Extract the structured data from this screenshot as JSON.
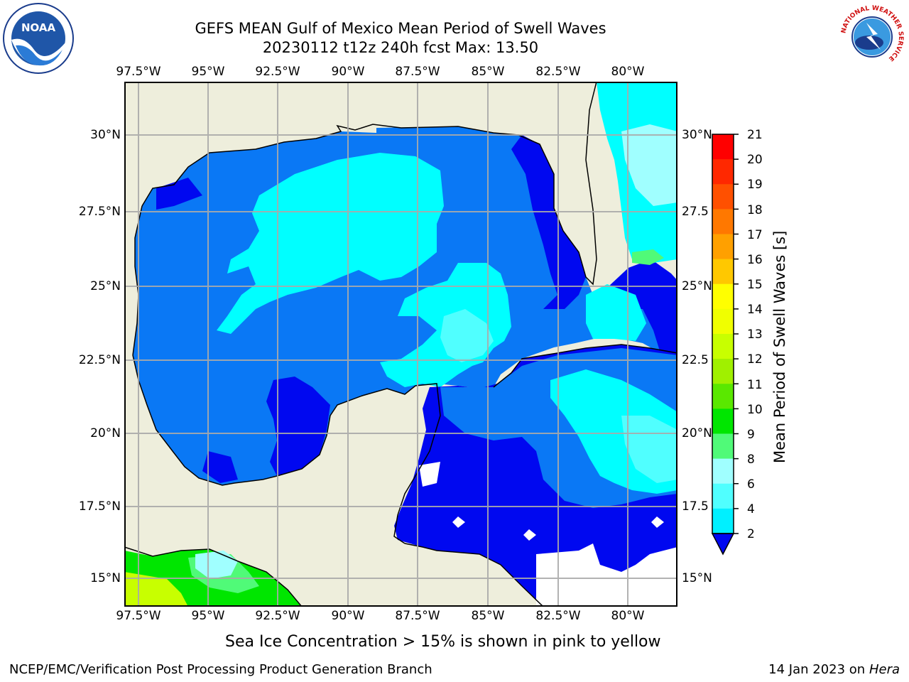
{
  "header": {
    "title_line1": "GEFS MEAN Gulf of Mexico Mean Period of Swell Waves",
    "title_line2": "20230112 t12z 240h fcst   Max: 13.50"
  },
  "logos": {
    "left_text": "NOAA",
    "right_ring_text": "NATIONAL WEATHER SERVICE"
  },
  "map": {
    "lon_labels": [
      "97.5°W",
      "95°W",
      "92.5°W",
      "90°W",
      "87.5°W",
      "85°W",
      "82.5°W",
      "80°W"
    ],
    "lat_labels": [
      "30°N",
      "27.5°N",
      "25°N",
      "22.5°N",
      "20°N",
      "17.5°N",
      "15°N"
    ],
    "lat_labels_right": [
      "30°N",
      "27.5",
      "25°N",
      "22.5",
      "20°N",
      "17.5",
      "15°N"
    ],
    "colors": {
      "land": "#eeeedc",
      "ocean_blue_2": "#0a78f5",
      "ocean_blue_0": "#0008f0",
      "cyan_4": "#00ffff",
      "cyan_6": "#3cf8f8",
      "green_10": "#28c828"
    }
  },
  "colorbar": {
    "label": "Mean Period of Swell Waves [s]",
    "ticks": [
      "21",
      "20",
      "19",
      "18",
      "17",
      "16",
      "15",
      "14",
      "13",
      "12",
      "11",
      "10",
      "9",
      "8",
      "6",
      "4",
      "2"
    ],
    "colors": [
      "#ff0000",
      "#ff2800",
      "#ff5000",
      "#ff7800",
      "#ffa000",
      "#ffc800",
      "#ffff00",
      "#f0ff00",
      "#c8ff00",
      "#a0f000",
      "#5ae800",
      "#00e600",
      "#50fa78",
      "#a0ffff",
      "#50ffff",
      "#00f0ff",
      "#0a78f5"
    ],
    "under_color": "#0008f0"
  },
  "note": "Sea Ice Concentration > 15% is shown in pink to yellow",
  "footer": {
    "left": "NCEP/EMC/Verification Post Processing Product Generation Branch",
    "right_prefix": "14 Jan 2023 on ",
    "right_host": "Hera"
  }
}
